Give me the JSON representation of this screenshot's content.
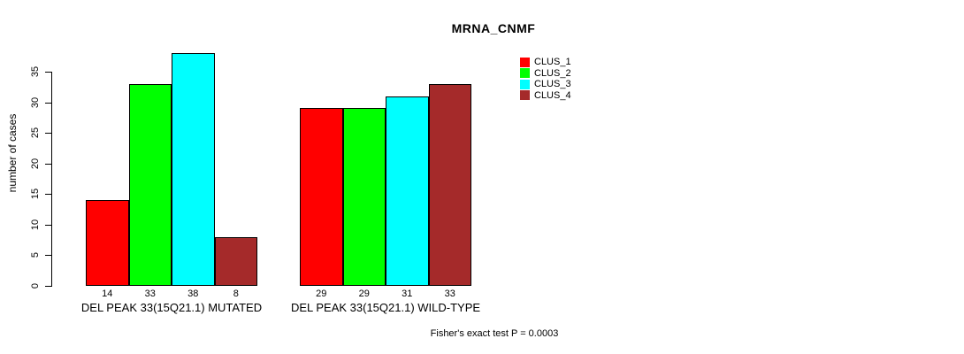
{
  "chart_data": {
    "type": "bar",
    "title": "MRNA_CNMF",
    "ylabel": "number of cases",
    "xlabel": "",
    "yticks": [
      0,
      5,
      10,
      15,
      20,
      25,
      30,
      35
    ],
    "ylim": [
      0,
      38
    ],
    "grid": false,
    "legend_position": "right-top",
    "categories": [
      "DEL PEAK 33(15Q21.1) MUTATED",
      "DEL PEAK 33(15Q21.1) WILD-TYPE"
    ],
    "series": [
      {
        "name": "CLUS_1",
        "color": "#FF0000",
        "values": [
          14,
          29
        ]
      },
      {
        "name": "CLUS_2",
        "color": "#00FF00",
        "values": [
          33,
          29
        ]
      },
      {
        "name": "CLUS_3",
        "color": "#00FFFF",
        "values": [
          38,
          31
        ]
      },
      {
        "name": "CLUS_4",
        "color": "#A52A2A",
        "values": [
          8,
          33
        ]
      }
    ],
    "bar_value_labels": {
      "DEL PEAK 33(15Q21.1) MUTATED": [
        14,
        33,
        38,
        8
      ],
      "DEL PEAK 33(15Q21.1) WILD-TYPE": [
        29,
        29,
        31,
        33
      ]
    },
    "annotation": "Fisher's exact test P = 0.0003"
  }
}
